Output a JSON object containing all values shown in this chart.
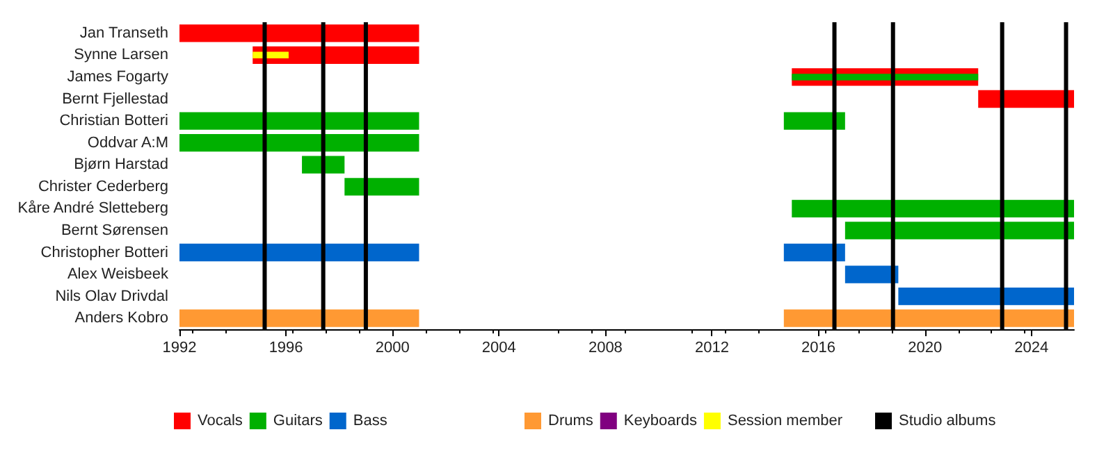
{
  "chart_data": {
    "type": "bar",
    "orientation": "horizontal",
    "categories": [
      "Jan Transeth",
      "Synne Larsen",
      "James Fogarty",
      "Bernt Fjellestad",
      "Christian Botteri",
      "Oddvar A:M",
      "Bjørn Harstad",
      "Christer Cederberg",
      "Kåre André Sletteberg",
      "Bernt Sørensen",
      "Christopher Botteri",
      "Alex Weisbeek",
      "Nils Olav Drivdal",
      "Anders Kobro"
    ],
    "series": [
      {
        "name": "Vocals",
        "color": "#ff0000",
        "base": [
          1992,
          1994.75,
          2015,
          2022,
          null,
          null,
          null,
          null,
          null,
          null,
          null,
          null,
          null,
          null
        ],
        "values": [
          9,
          6.25,
          7,
          3.6,
          null,
          null,
          null,
          null,
          null,
          null,
          null,
          null,
          null,
          null
        ]
      },
      {
        "name": "Guitars",
        "color": "#00b000",
        "base": [
          null,
          null,
          2015,
          null,
          1992,
          1992,
          1996.6,
          1998.2,
          2015,
          2017,
          null,
          null,
          null,
          null
        ],
        "values": [
          null,
          null,
          7,
          null,
          9,
          9,
          1.6,
          2.8,
          10.6,
          8.6,
          null,
          null,
          null,
          null
        ]
      },
      {
        "color": "#00b000",
        "base": [
          null,
          null,
          null,
          null,
          2014.7,
          null,
          null,
          null,
          null,
          null,
          null,
          null,
          null,
          null
        ],
        "values": [
          null,
          null,
          null,
          null,
          2.3,
          null,
          null,
          null,
          null,
          null,
          null,
          null,
          null,
          null
        ]
      },
      {
        "name": "Bass",
        "color": "#0066cc",
        "base": [
          null,
          null,
          null,
          null,
          null,
          null,
          null,
          null,
          null,
          null,
          1992,
          2017,
          2019,
          null
        ],
        "values": [
          null,
          null,
          null,
          null,
          null,
          null,
          null,
          null,
          null,
          null,
          9,
          2,
          6.6,
          null
        ]
      },
      {
        "color": "#0066cc",
        "base": [
          null,
          null,
          null,
          null,
          null,
          null,
          null,
          null,
          null,
          null,
          2014.7,
          null,
          null,
          null
        ],
        "values": [
          null,
          null,
          null,
          null,
          null,
          null,
          null,
          null,
          null,
          null,
          2.3,
          null,
          null,
          null
        ]
      },
      {
        "name": "Drums",
        "color": "#ff9933",
        "base": [
          null,
          null,
          null,
          null,
          null,
          null,
          null,
          null,
          null,
          null,
          null,
          null,
          null,
          1992
        ],
        "values": [
          null,
          null,
          null,
          null,
          null,
          null,
          null,
          null,
          null,
          null,
          null,
          null,
          null,
          9
        ]
      },
      {
        "color": "#ff9933",
        "base": [
          null,
          null,
          null,
          null,
          null,
          null,
          null,
          null,
          null,
          null,
          null,
          null,
          null,
          2014.7
        ],
        "values": [
          null,
          null,
          null,
          null,
          null,
          null,
          null,
          null,
          null,
          null,
          null,
          null,
          null,
          10.9
        ]
      },
      {
        "name": "Keyboards",
        "color": "#800080",
        "base": [
          null,
          null,
          null,
          null,
          null,
          null,
          null,
          null,
          null,
          null,
          null,
          null,
          null,
          null
        ],
        "values": [
          null,
          null,
          null,
          null,
          null,
          null,
          null,
          null,
          null,
          null,
          null,
          null,
          null,
          null
        ]
      },
      {
        "name": "Session member",
        "color": "#ffff00",
        "base": [
          null,
          1994.75,
          null,
          null,
          null,
          null,
          null,
          null,
          null,
          null,
          null,
          null,
          null,
          null
        ],
        "values": [
          null,
          1.35,
          null,
          null,
          null,
          null,
          null,
          null,
          null,
          null,
          null,
          null,
          null,
          null
        ]
      }
    ],
    "xlim": [
      1992,
      2025.6
    ],
    "xticks": [
      1992,
      1996,
      2000,
      2004,
      2008,
      2012,
      2016,
      2020,
      2024
    ],
    "ref_lines": [
      {
        "axis": "x",
        "value": 1995.2,
        "color": "#000000",
        "label": "Studio albums"
      },
      {
        "axis": "x",
        "value": 1997.4,
        "color": "#000000",
        "label": null
      },
      {
        "axis": "x",
        "value": 1999.0,
        "color": "#000000",
        "label": null
      },
      {
        "axis": "x",
        "value": 2016.6,
        "color": "#000000",
        "label": null
      },
      {
        "axis": "x",
        "value": 2018.8,
        "color": "#000000",
        "label": null
      },
      {
        "axis": "x",
        "value": 2022.9,
        "color": "#000000",
        "label": null
      },
      {
        "axis": "x",
        "value": 2025.3,
        "color": "#000000",
        "label": null
      }
    ],
    "grid": false,
    "legend": "bottom"
  }
}
